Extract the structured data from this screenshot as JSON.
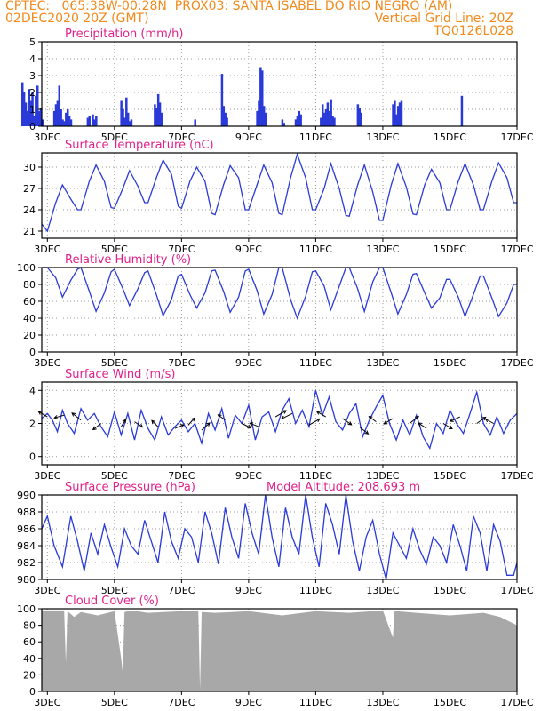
{
  "header": {
    "line1": "CPTEC:   065:38W-00:28N  PROX03: SANTA ISABEL DO RIO NEGRO (AM)",
    "line2_left": "02DEC2020 20Z (GMT)",
    "line2_right": "Vertical Grid Line: 20Z",
    "line3_right": "TQ0126L028"
  },
  "colors": {
    "header": "#f08a1c",
    "title": "#e0208a",
    "series": "#2a3ad8",
    "cloud": "#a8a8a8",
    "grid": "#9a9a9a"
  },
  "x_axis": {
    "ticks": [
      "3DEC",
      "5DEC",
      "7DEC",
      "9DEC",
      "11DEC",
      "13DEC",
      "15DEC",
      "17DEC"
    ],
    "tick_days": [
      3,
      5,
      7,
      9,
      11,
      13,
      15,
      17
    ],
    "start_day": 2.833,
    "end_day": 17.0
  },
  "chart_data": [
    {
      "type": "bar",
      "title": "Precipitation (mm/h)",
      "ylim": [
        0,
        5
      ],
      "yticks": [
        "0",
        "1",
        "2",
        "3",
        "4",
        "5"
      ],
      "days": [
        2.25,
        2.3,
        2.35,
        2.4,
        2.45,
        2.5,
        2.55,
        2.6,
        2.65,
        2.7,
        2.75,
        2.8,
        2.85,
        3.2,
        3.25,
        3.3,
        3.35,
        3.4,
        3.45,
        3.5,
        3.55,
        3.6,
        3.65,
        3.7,
        4.2,
        4.25,
        4.35,
        4.4,
        4.45,
        5.2,
        5.25,
        5.3,
        5.35,
        5.4,
        5.45,
        5.5,
        6.2,
        6.25,
        6.3,
        6.35,
        6.4,
        7.4,
        8.2,
        8.25,
        8.3,
        8.35,
        9.25,
        9.3,
        9.35,
        9.4,
        9.45,
        9.5,
        10.0,
        10.05,
        10.4,
        10.45,
        10.5,
        10.55,
        11.15,
        11.2,
        11.25,
        11.3,
        11.35,
        11.4,
        11.45,
        11.5,
        11.55,
        12.25,
        12.3,
        12.35,
        13.3,
        13.35,
        13.4,
        13.45,
        13.5,
        13.55,
        15.35
      ],
      "values": [
        2.6,
        2.0,
        1.4,
        0.9,
        2.2,
        1.5,
        2.0,
        0.6,
        1.8,
        2.4,
        0.9,
        1.1,
        0.4,
        0.9,
        1.3,
        1.5,
        2.4,
        1.0,
        0.4,
        0.3,
        0.8,
        1.0,
        0.6,
        0.4,
        0.5,
        0.6,
        0.7,
        0.4,
        0.6,
        1.5,
        1.0,
        0.5,
        1.7,
        0.8,
        0.3,
        0.4,
        1.3,
        1.1,
        1.9,
        1.4,
        0.8,
        0.4,
        3.1,
        1.2,
        0.8,
        0.5,
        0.9,
        1.5,
        3.5,
        3.3,
        1.2,
        0.8,
        0.4,
        0.2,
        0.4,
        0.6,
        0.9,
        0.7,
        0.5,
        1.3,
        0.8,
        1.0,
        1.4,
        0.9,
        1.6,
        0.6,
        0.5,
        1.3,
        1.1,
        0.8,
        1.3,
        1.5,
        0.7,
        1.2,
        1.4,
        1.5,
        1.8
      ]
    },
    {
      "type": "line",
      "title": "Surface Temperature (nC)",
      "ylim": [
        20,
        32
      ],
      "yticks": [
        "21",
        "24",
        "27",
        "30"
      ],
      "ytick_values": [
        21,
        24,
        27,
        30
      ],
      "days": [
        2.833,
        3.0,
        3.25,
        3.45,
        3.7,
        3.9,
        4.0,
        4.25,
        4.45,
        4.7,
        4.9,
        5.0,
        5.25,
        5.45,
        5.7,
        5.9,
        6.0,
        6.25,
        6.45,
        6.7,
        6.9,
        7.0,
        7.25,
        7.45,
        7.7,
        7.9,
        8.0,
        8.25,
        8.45,
        8.7,
        8.9,
        9.0,
        9.25,
        9.45,
        9.7,
        9.9,
        10.0,
        10.25,
        10.45,
        10.7,
        10.9,
        11.0,
        11.25,
        11.45,
        11.7,
        11.9,
        12.0,
        12.25,
        12.45,
        12.7,
        12.9,
        13.0,
        13.25,
        13.45,
        13.7,
        13.9,
        14.0,
        14.25,
        14.45,
        14.7,
        14.9,
        15.0,
        15.25,
        15.45,
        15.7,
        15.9,
        16.0,
        16.25,
        16.45,
        16.7,
        16.9,
        17.0
      ],
      "values": [
        22.0,
        21.0,
        25.0,
        27.5,
        25.5,
        24.0,
        24.0,
        28.0,
        30.3,
        28.0,
        24.3,
        24.2,
        27.0,
        29.5,
        27.3,
        25.0,
        25.0,
        28.5,
        31.0,
        29.0,
        24.5,
        24.2,
        28.0,
        30.0,
        28.0,
        23.5,
        23.3,
        27.5,
        30.2,
        28.5,
        24.0,
        24.0,
        27.5,
        30.3,
        27.8,
        23.5,
        23.3,
        28.5,
        31.8,
        28.5,
        24.0,
        24.0,
        27.0,
        30.5,
        27.0,
        23.2,
        23.1,
        27.5,
        30.3,
        26.5,
        22.5,
        22.5,
        27.5,
        30.5,
        27.2,
        23.4,
        23.3,
        27.5,
        29.7,
        27.8,
        24.0,
        24.0,
        28.0,
        30.5,
        27.5,
        24.0,
        24.0,
        28.0,
        30.6,
        28.5,
        25.0,
        25.0
      ]
    },
    {
      "type": "line",
      "title": "Relative Humidity (%)",
      "ylim": [
        0,
        100
      ],
      "yticks": [
        "0",
        "20",
        "40",
        "60",
        "80",
        "100"
      ],
      "ytick_values": [
        0,
        20,
        40,
        60,
        80,
        100
      ],
      "days": [
        2.833,
        3.0,
        3.25,
        3.45,
        3.7,
        3.9,
        4.0,
        4.25,
        4.45,
        4.7,
        4.9,
        5.0,
        5.25,
        5.45,
        5.7,
        5.9,
        6.0,
        6.25,
        6.45,
        6.7,
        6.9,
        7.0,
        7.25,
        7.45,
        7.7,
        7.9,
        8.0,
        8.25,
        8.45,
        8.7,
        8.9,
        9.0,
        9.25,
        9.45,
        9.7,
        9.9,
        10.0,
        10.25,
        10.45,
        10.7,
        10.9,
        11.0,
        11.25,
        11.45,
        11.7,
        11.9,
        12.0,
        12.25,
        12.45,
        12.7,
        12.9,
        13.0,
        13.25,
        13.45,
        13.7,
        13.9,
        14.0,
        14.25,
        14.45,
        14.7,
        14.9,
        15.0,
        15.25,
        15.45,
        15.7,
        15.9,
        16.0,
        16.25,
        16.45,
        16.7,
        16.9,
        17.0
      ],
      "values": [
        100,
        100,
        88,
        65,
        85,
        98,
        100,
        72,
        48,
        70,
        95,
        98,
        75,
        55,
        75,
        94,
        96,
        68,
        43,
        62,
        90,
        92,
        68,
        52,
        70,
        96,
        97,
        72,
        47,
        65,
        96,
        98,
        73,
        45,
        68,
        100,
        100,
        62,
        40,
        66,
        95,
        96,
        78,
        50,
        78,
        100,
        100,
        75,
        48,
        83,
        100,
        100,
        70,
        45,
        68,
        92,
        93,
        70,
        52,
        64,
        86,
        86,
        65,
        42,
        68,
        90,
        90,
        64,
        42,
        58,
        80,
        80
      ]
    },
    {
      "type": "line",
      "title": "Surface Wind (m/s)",
      "ylim": [
        -0.5,
        4.5
      ],
      "yticks": [
        "0",
        "2",
        "4"
      ],
      "ytick_values": [
        0,
        2,
        4
      ],
      "days": [
        2.833,
        3.0,
        3.15,
        3.3,
        3.45,
        3.6,
        3.8,
        4.0,
        4.2,
        4.4,
        4.6,
        4.8,
        5.0,
        5.2,
        5.4,
        5.6,
        5.8,
        6.0,
        6.2,
        6.4,
        6.6,
        6.8,
        7.0,
        7.2,
        7.4,
        7.6,
        7.8,
        8.0,
        8.2,
        8.4,
        8.6,
        8.8,
        9.0,
        9.2,
        9.4,
        9.6,
        9.8,
        10.0,
        10.2,
        10.4,
        10.6,
        10.8,
        11.0,
        11.2,
        11.4,
        11.6,
        11.8,
        12.0,
        12.2,
        12.4,
        12.6,
        12.8,
        13.0,
        13.2,
        13.4,
        13.6,
        13.8,
        14.0,
        14.2,
        14.4,
        14.6,
        14.8,
        15.0,
        15.2,
        15.4,
        15.6,
        15.8,
        16.0,
        16.2,
        16.4,
        16.6,
        16.8,
        17.0
      ],
      "values": [
        2.3,
        2.6,
        2.2,
        1.5,
        2.8,
        2.0,
        1.4,
        2.9,
        2.2,
        2.6,
        1.8,
        1.2,
        2.7,
        1.3,
        2.6,
        1.0,
        2.8,
        1.7,
        1.0,
        2.4,
        1.3,
        1.8,
        2.2,
        1.5,
        2.0,
        0.8,
        2.6,
        1.6,
        2.9,
        1.1,
        2.5,
        2.0,
        3.1,
        1.0,
        2.4,
        2.7,
        1.5,
        2.8,
        3.5,
        2.0,
        2.8,
        1.8,
        4.0,
        2.5,
        3.6,
        2.1,
        1.6,
        2.6,
        3.2,
        1.2,
        2.2,
        3.0,
        3.7,
        2.0,
        1.0,
        2.2,
        1.3,
        2.5,
        1.2,
        0.5,
        2.0,
        1.4,
        2.8,
        2.0,
        1.4,
        2.6,
        3.9,
        2.0,
        1.3,
        2.4,
        1.4,
        2.2,
        2.6
      ],
      "arrows": {
        "days": [
          3.0,
          3.5,
          4.0,
          4.6,
          5.2,
          5.6,
          6.3,
          6.8,
          7.2,
          7.6,
          8.3,
          8.8,
          9.3,
          9.8,
          10.3,
          10.8,
          11.3,
          11.8,
          12.3,
          12.8,
          13.3,
          13.8,
          14.3,
          14.8,
          15.3,
          15.8,
          16.3
        ],
        "speeds": [
          2.4,
          2.5,
          2.2,
          2.0,
          1.8,
          2.1,
          1.8,
          1.7,
          1.9,
          1.6,
          2.2,
          2.0,
          1.8,
          2.4,
          2.6,
          1.9,
          2.4,
          2.3,
          1.8,
          2.1,
          2.3,
          2.0,
          1.7,
          2.0,
          2.4,
          2.0,
          2.0
        ],
        "u": [
          -10,
          -11,
          -10,
          -9,
          5,
          9,
          -7,
          10,
          7,
          9,
          -8,
          10,
          -10,
          12,
          -12,
          12,
          -10,
          10,
          10,
          -8,
          -10,
          10,
          -9,
          10,
          -11,
          10,
          -9
        ],
        "v": [
          6,
          -3,
          8,
          -7,
          8,
          -6,
          7,
          4,
          8,
          8,
          6,
          -5,
          4,
          7,
          -6,
          7,
          6,
          -7,
          -8,
          6,
          -6,
          8,
          6,
          -6,
          -5,
          7,
          5
        ]
      }
    },
    {
      "type": "line",
      "title": "Surface Pressure (hPa)",
      "annotation": "Model Altitude: 208.693 m",
      "ylim": [
        980,
        990
      ],
      "yticks": [
        "980",
        "982",
        "984",
        "986",
        "988",
        "990"
      ],
      "ytick_values": [
        980,
        982,
        984,
        986,
        988,
        990
      ],
      "days": [
        2.833,
        3.0,
        3.2,
        3.45,
        3.7,
        3.9,
        4.1,
        4.3,
        4.5,
        4.7,
        4.9,
        5.1,
        5.3,
        5.5,
        5.7,
        5.9,
        6.1,
        6.3,
        6.5,
        6.7,
        6.9,
        7.1,
        7.3,
        7.5,
        7.7,
        7.9,
        8.1,
        8.3,
        8.5,
        8.7,
        8.9,
        9.1,
        9.3,
        9.5,
        9.7,
        9.9,
        10.1,
        10.3,
        10.5,
        10.7,
        10.9,
        11.1,
        11.3,
        11.5,
        11.7,
        11.9,
        12.1,
        12.3,
        12.5,
        12.7,
        12.9,
        13.1,
        13.3,
        13.5,
        13.7,
        13.9,
        14.1,
        14.3,
        14.5,
        14.7,
        14.9,
        15.1,
        15.3,
        15.5,
        15.7,
        15.9,
        16.1,
        16.3,
        16.5,
        16.7,
        16.9,
        17.0
      ],
      "values": [
        986.0,
        987.5,
        984.0,
        981.5,
        987.5,
        984.5,
        981.0,
        985.5,
        983.0,
        986.5,
        983.8,
        981.5,
        986.0,
        984.0,
        983.0,
        987.0,
        984.5,
        982.0,
        988.0,
        984.5,
        982.5,
        986.0,
        985.0,
        982.0,
        988.0,
        985.5,
        981.8,
        988.5,
        985.0,
        982.5,
        989.0,
        985.5,
        983.0,
        990.0,
        985.0,
        981.5,
        988.5,
        985.0,
        983.0,
        990.5,
        985.0,
        981.5,
        989.0,
        986.5,
        983.0,
        990.0,
        984.5,
        981.0,
        985.0,
        987.0,
        983.0,
        980.0,
        985.5,
        984.0,
        982.5,
        986.0,
        983.5,
        981.8,
        985.0,
        984.0,
        982.0,
        986.5,
        984.0,
        981.0,
        987.5,
        985.5,
        981.0,
        986.5,
        984.5,
        980.5,
        980.5,
        982.0
      ]
    },
    {
      "type": "area",
      "title": "Cloud Cover (%)",
      "ylim": [
        0,
        100
      ],
      "yticks": [
        "0",
        "20",
        "40",
        "60",
        "80",
        "100"
      ],
      "ytick_values": [
        0,
        20,
        40,
        60,
        80,
        100
      ],
      "days": [
        2.833,
        3.5,
        3.55,
        3.6,
        3.8,
        4.0,
        4.5,
        5.0,
        5.2,
        5.25,
        5.3,
        5.5,
        6.0,
        7.0,
        7.5,
        7.55,
        7.6,
        8.0,
        9.0,
        10.0,
        11.0,
        12.0,
        13.0,
        13.3,
        13.35,
        13.4,
        14.0,
        15.0,
        16.0,
        16.5,
        17.0
      ],
      "values": [
        98,
        98,
        35,
        97,
        90,
        96,
        92,
        97,
        40,
        22,
        96,
        98,
        95,
        97,
        98,
        2,
        96,
        95,
        97,
        92,
        97,
        95,
        98,
        65,
        98,
        97,
        95,
        92,
        95,
        90,
        80
      ]
    }
  ]
}
